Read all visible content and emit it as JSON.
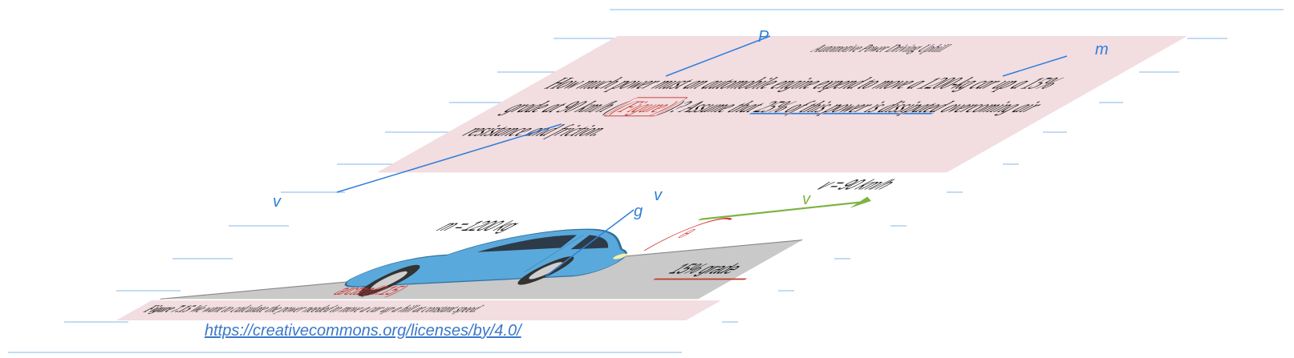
{
  "document": {
    "title": "Automotive Power Driving Uphill",
    "problem_before_link": "How much power must an automobile engine expend to move a 1200-kg car up a 15% grade at 90 km/h (",
    "problem_link": "(Figure)",
    "problem_middle": ")? Assume that ",
    "problem_highlight": "25% of this power is dissipated",
    "problem_after": " overcoming air resistance and friction."
  },
  "figure": {
    "mass_label": "m = 1200 kg",
    "velocity_label": "v = 90 km/h",
    "grade_label": "15% grade",
    "angle_label": "arctan(0.15)",
    "theta_label": "θ",
    "car_color": "#5aa9dc",
    "ground_color": "#c9c9c9",
    "velocity_color": "#7cb342",
    "angle_color": "#d32f2f",
    "caption_number": "Figure 7.15",
    "caption_text": " We want to calculate the power needed to move a car up a hill at constant speed."
  },
  "annotations": {
    "arrow_color": "#2f7fd9",
    "labels": [
      "P",
      "m",
      "v",
      "v",
      "g",
      "v"
    ]
  },
  "license": {
    "url": "https://creativecommons.org/licenses/by/4.0/"
  }
}
